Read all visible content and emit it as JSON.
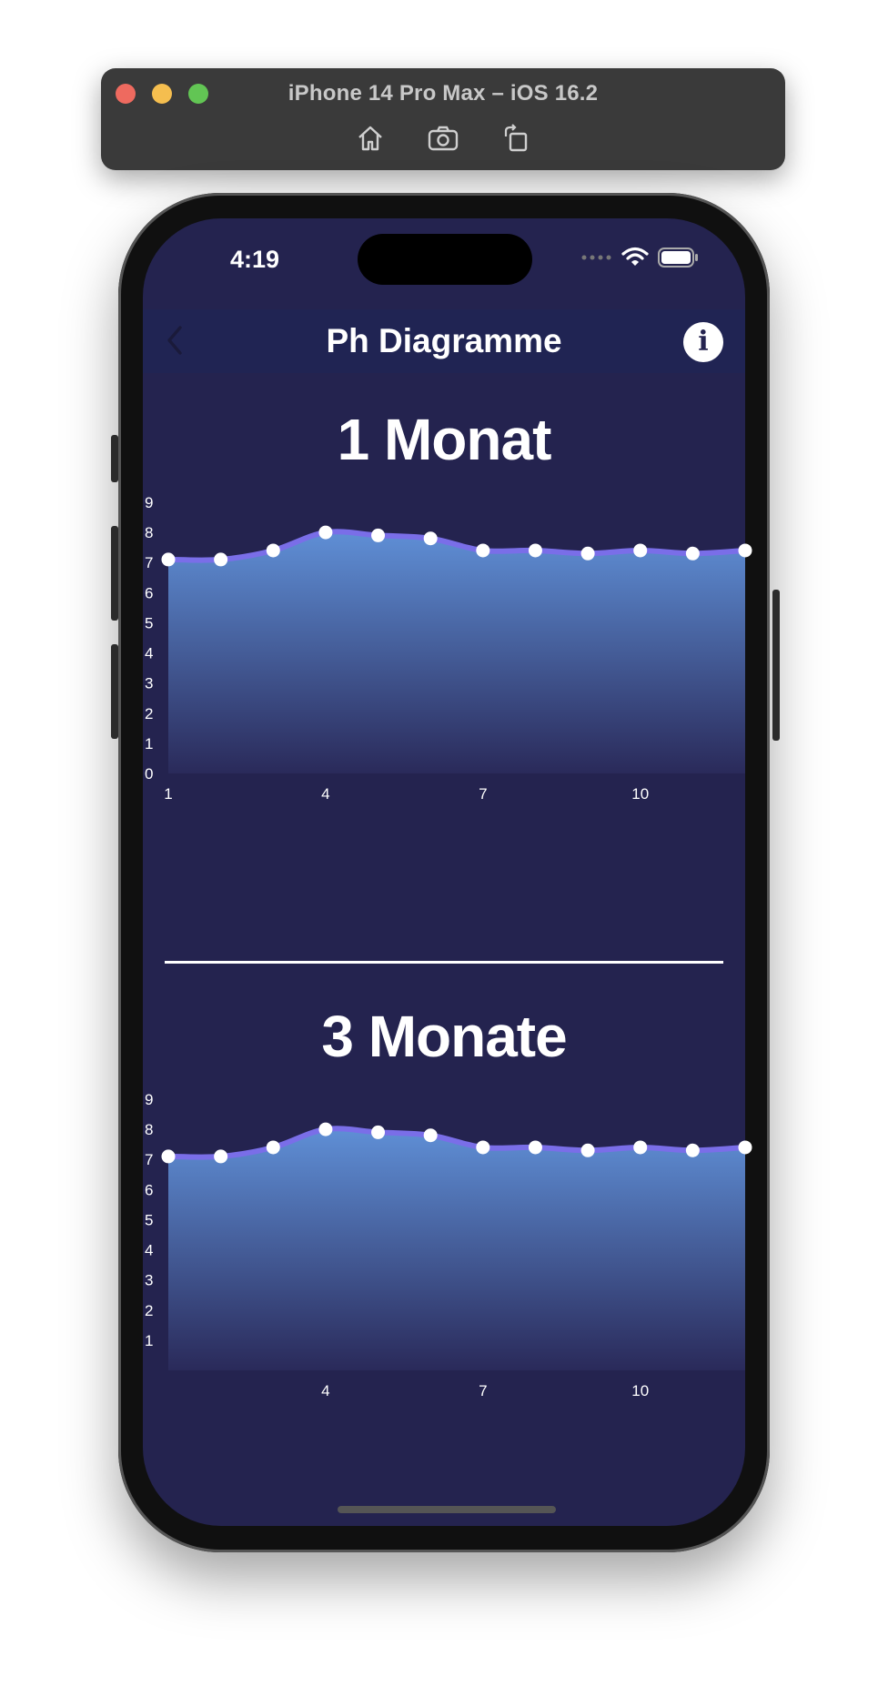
{
  "window": {
    "title": "iPhone 14 Pro Max – iOS 16.2",
    "tools": [
      "home-icon",
      "screenshot-icon",
      "rotate-icon"
    ]
  },
  "status_bar": {
    "time": "4:19"
  },
  "nav": {
    "title": "Ph Diagramme",
    "info_label": "i"
  },
  "colors": {
    "background": "#24234f",
    "line": "#7a6ee8",
    "fill_top": "#5f8fd6",
    "fill_bottom": "#2a2a5a",
    "point": "#ffffff"
  },
  "chart_data": [
    {
      "type": "area",
      "title": "1 Monat",
      "x": [
        1,
        2,
        3,
        4,
        5,
        6,
        7,
        8,
        9,
        10,
        11,
        12
      ],
      "values": [
        7.1,
        7.1,
        7.4,
        8.0,
        7.9,
        7.8,
        7.4,
        7.4,
        7.3,
        7.4,
        7.3,
        7.4
      ],
      "xticks": [
        "1",
        "4",
        "7",
        "10"
      ],
      "yticks": [
        "0",
        "1",
        "2",
        "3",
        "4",
        "5",
        "6",
        "7",
        "8",
        "9"
      ],
      "ylim": [
        0,
        9
      ]
    },
    {
      "type": "area",
      "title": "3 Monate",
      "x": [
        1,
        2,
        3,
        4,
        5,
        6,
        7,
        8,
        9,
        10,
        11,
        12
      ],
      "values": [
        7.1,
        7.1,
        7.4,
        8.0,
        7.9,
        7.8,
        7.4,
        7.4,
        7.3,
        7.4,
        7.3,
        7.4
      ],
      "xticks": [
        "4",
        "7",
        "10"
      ],
      "yticks": [
        "1",
        "2",
        "3",
        "4",
        "5",
        "6",
        "7",
        "8",
        "9"
      ],
      "ylim": [
        0,
        9
      ]
    }
  ]
}
